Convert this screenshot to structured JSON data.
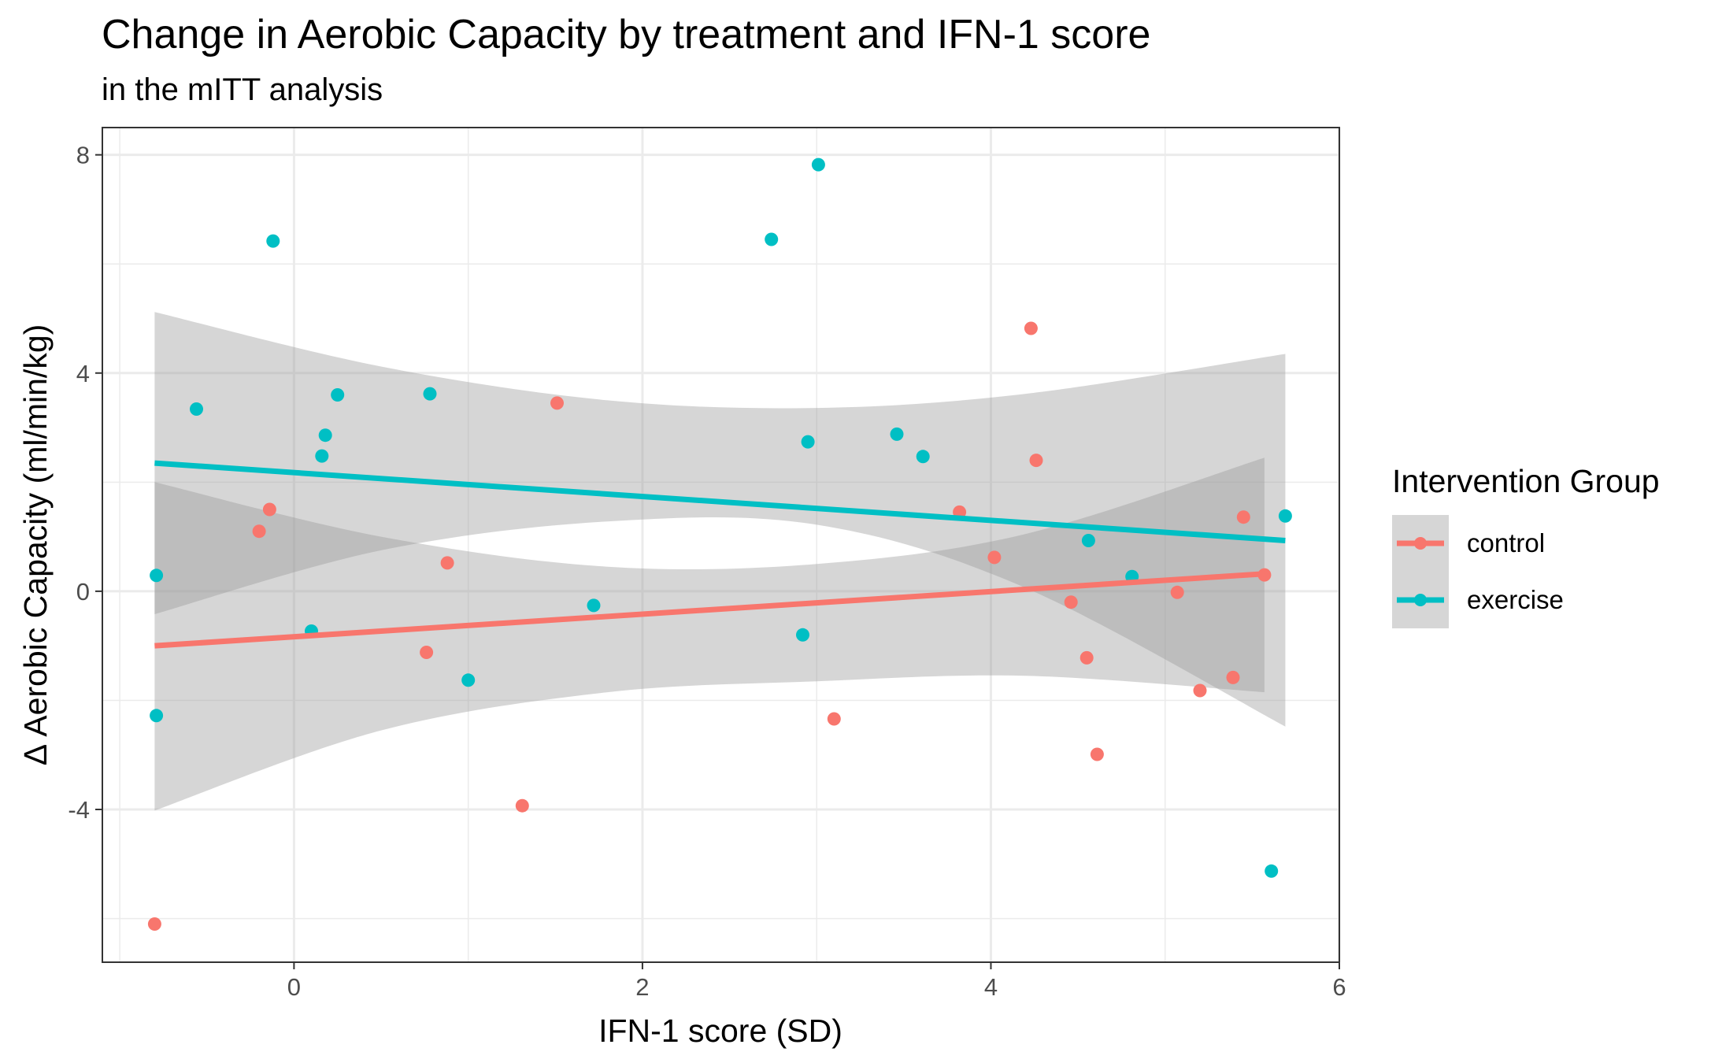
{
  "chart_data": {
    "type": "scatter",
    "title": "Change in Aerobic Capacity by treatment and IFN-1 score",
    "subtitle": "in the mITT analysis",
    "xlabel": "IFN-1 score (SD)",
    "ylabel": "Δ Aerobic Capacity (ml/min/kg)",
    "xlim": [
      -1.1,
      6.0
    ],
    "ylim": [
      -6.8,
      8.5
    ],
    "x_ticks": [
      0,
      2,
      4,
      6
    ],
    "x_tick_labels": [
      "0",
      "2",
      "4",
      "6"
    ],
    "y_ticks": [
      -4,
      0,
      4,
      8
    ],
    "y_tick_labels": [
      "-4",
      "0",
      "4",
      "8"
    ],
    "grid": true,
    "legend": {
      "title": "Intervention Group",
      "placement": "right",
      "entries": [
        "control",
        "exercise"
      ]
    },
    "series": [
      {
        "name": "control",
        "color": "#F8766D",
        "points": [
          [
            -0.8,
            -6.1
          ],
          [
            -0.2,
            1.1
          ],
          [
            -0.14,
            1.5
          ],
          [
            0.76,
            -1.12
          ],
          [
            0.88,
            0.52
          ],
          [
            1.31,
            -3.93
          ],
          [
            1.51,
            3.45
          ],
          [
            3.1,
            -2.34
          ],
          [
            3.82,
            1.45
          ],
          [
            4.02,
            0.62
          ],
          [
            4.23,
            4.82
          ],
          [
            4.26,
            2.4
          ],
          [
            4.46,
            -0.2
          ],
          [
            4.55,
            -1.22
          ],
          [
            4.61,
            -2.99
          ],
          [
            5.07,
            -0.02
          ],
          [
            5.2,
            -1.82
          ],
          [
            5.39,
            -1.58
          ],
          [
            5.45,
            1.36
          ],
          [
            5.57,
            0.3
          ]
        ],
        "fit": {
          "x": [
            -0.8,
            5.57
          ],
          "y": [
            -1.0,
            0.32
          ]
        },
        "ci_upper": [
          [
            -0.8,
            2.0
          ],
          [
            0.5,
            1.0
          ],
          [
            1.8,
            0.45
          ],
          [
            3.0,
            0.5
          ],
          [
            4.2,
            1.05
          ],
          [
            5.57,
            2.45
          ]
        ],
        "ci_lower": [
          [
            -0.8,
            -4.02
          ],
          [
            0.5,
            -2.55
          ],
          [
            1.8,
            -1.85
          ],
          [
            3.0,
            -1.65
          ],
          [
            4.2,
            -1.55
          ],
          [
            5.57,
            -1.85
          ]
        ]
      },
      {
        "name": "exercise",
        "color": "#00BFC4",
        "points": [
          [
            -0.79,
            -2.28
          ],
          [
            -0.79,
            0.29
          ],
          [
            -0.56,
            3.34
          ],
          [
            -0.12,
            6.42
          ],
          [
            0.1,
            -0.73
          ],
          [
            0.16,
            2.48
          ],
          [
            0.18,
            2.86
          ],
          [
            0.25,
            3.6
          ],
          [
            0.78,
            3.62
          ],
          [
            1.0,
            -1.63
          ],
          [
            1.72,
            -0.26
          ],
          [
            2.74,
            6.45
          ],
          [
            2.92,
            -0.8
          ],
          [
            2.95,
            2.74
          ],
          [
            3.01,
            7.82
          ],
          [
            3.46,
            2.88
          ],
          [
            3.61,
            2.47
          ],
          [
            4.56,
            0.93
          ],
          [
            4.81,
            0.27
          ],
          [
            5.61,
            -5.13
          ],
          [
            5.69,
            1.38
          ]
        ],
        "fit": {
          "x": [
            -0.8,
            5.69
          ],
          "y": [
            2.35,
            0.93
          ]
        },
        "ci_upper": [
          [
            -0.8,
            5.12
          ],
          [
            0.5,
            4.12
          ],
          [
            1.8,
            3.5
          ],
          [
            3.0,
            3.36
          ],
          [
            4.2,
            3.62
          ],
          [
            5.69,
            4.35
          ]
        ],
        "ci_lower": [
          [
            -0.8,
            -0.42
          ],
          [
            0.5,
            0.75
          ],
          [
            1.8,
            1.28
          ],
          [
            3.0,
            1.22
          ],
          [
            4.2,
            0.06
          ],
          [
            5.69,
            -2.48
          ]
        ]
      }
    ]
  }
}
